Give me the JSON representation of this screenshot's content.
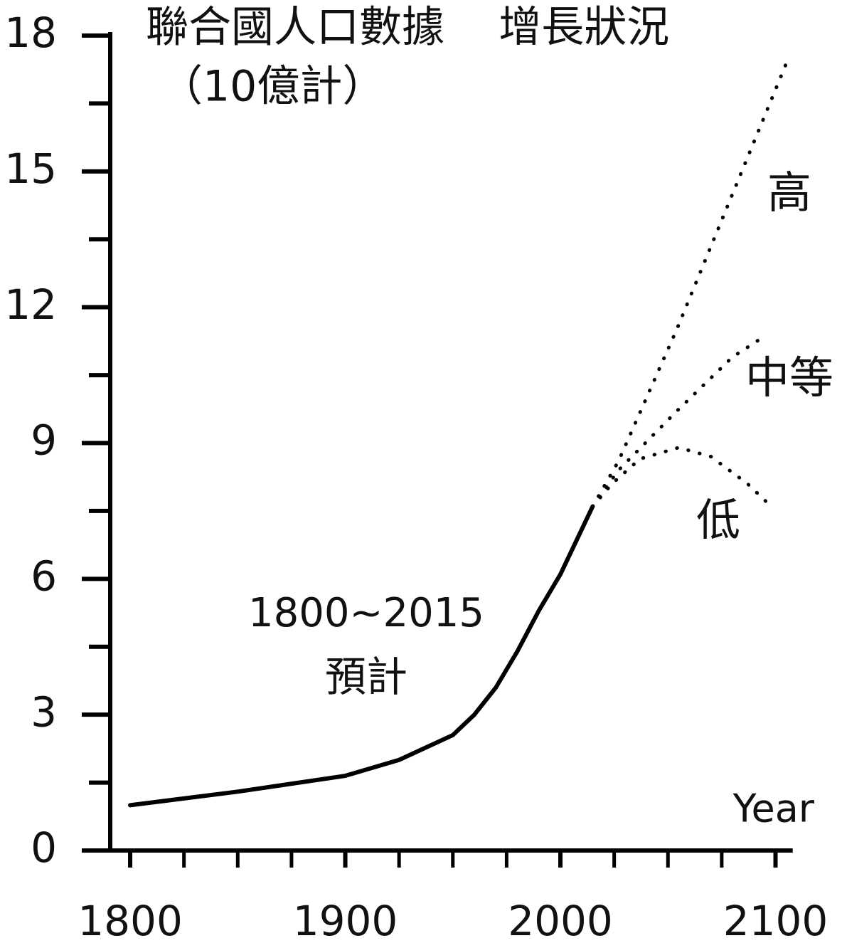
{
  "chart_data": {
    "type": "line",
    "title": "聯合國人口數據    增長狀況",
    "subtitle": "（10億計）",
    "x_label": "Year",
    "annotations": [
      "1800~2015",
      "預計"
    ],
    "xlim": [
      1778,
      2108
    ],
    "xticks": [
      1800,
      1900,
      2000,
      2100
    ],
    "x_minor_ticks": [
      1825,
      1850,
      1875,
      1925,
      1950,
      1975,
      2025,
      2050,
      2075
    ],
    "ylim": [
      0,
      18
    ],
    "yticks": [
      0,
      3,
      6,
      9,
      12,
      15,
      18
    ],
    "y_minor_ticks": [
      1.5,
      4.5,
      7.5,
      10.5,
      13.5,
      16.5
    ],
    "color": "#000000",
    "series": [
      {
        "style": "solid",
        "x": [
          1800,
          1850,
          1900,
          1925,
          1950,
          1960,
          1970,
          1980,
          1990,
          2000,
          2015
        ],
        "values": [
          1.0,
          1.3,
          1.65,
          2.0,
          2.55,
          3.0,
          3.6,
          4.4,
          5.3,
          6.1,
          7.6
        ]
      },
      {
        "name": "高",
        "style": "dotted",
        "x": [
          2015,
          2027,
          2054,
          2080,
          2106
        ],
        "values": [
          7.6,
          8.6,
          11.5,
          14.5,
          17.5
        ]
      },
      {
        "name": "中等",
        "style": "dotted",
        "x": [
          2015,
          2027,
          2054,
          2080,
          2093
        ],
        "values": [
          7.6,
          8.4,
          9.7,
          10.9,
          11.3
        ]
      },
      {
        "name": "低",
        "style": "dotted",
        "x": [
          2015,
          2024,
          2037,
          2055,
          2070,
          2087,
          2098
        ],
        "values": [
          7.6,
          8.1,
          8.65,
          8.9,
          8.7,
          8.1,
          7.6
        ]
      }
    ]
  }
}
